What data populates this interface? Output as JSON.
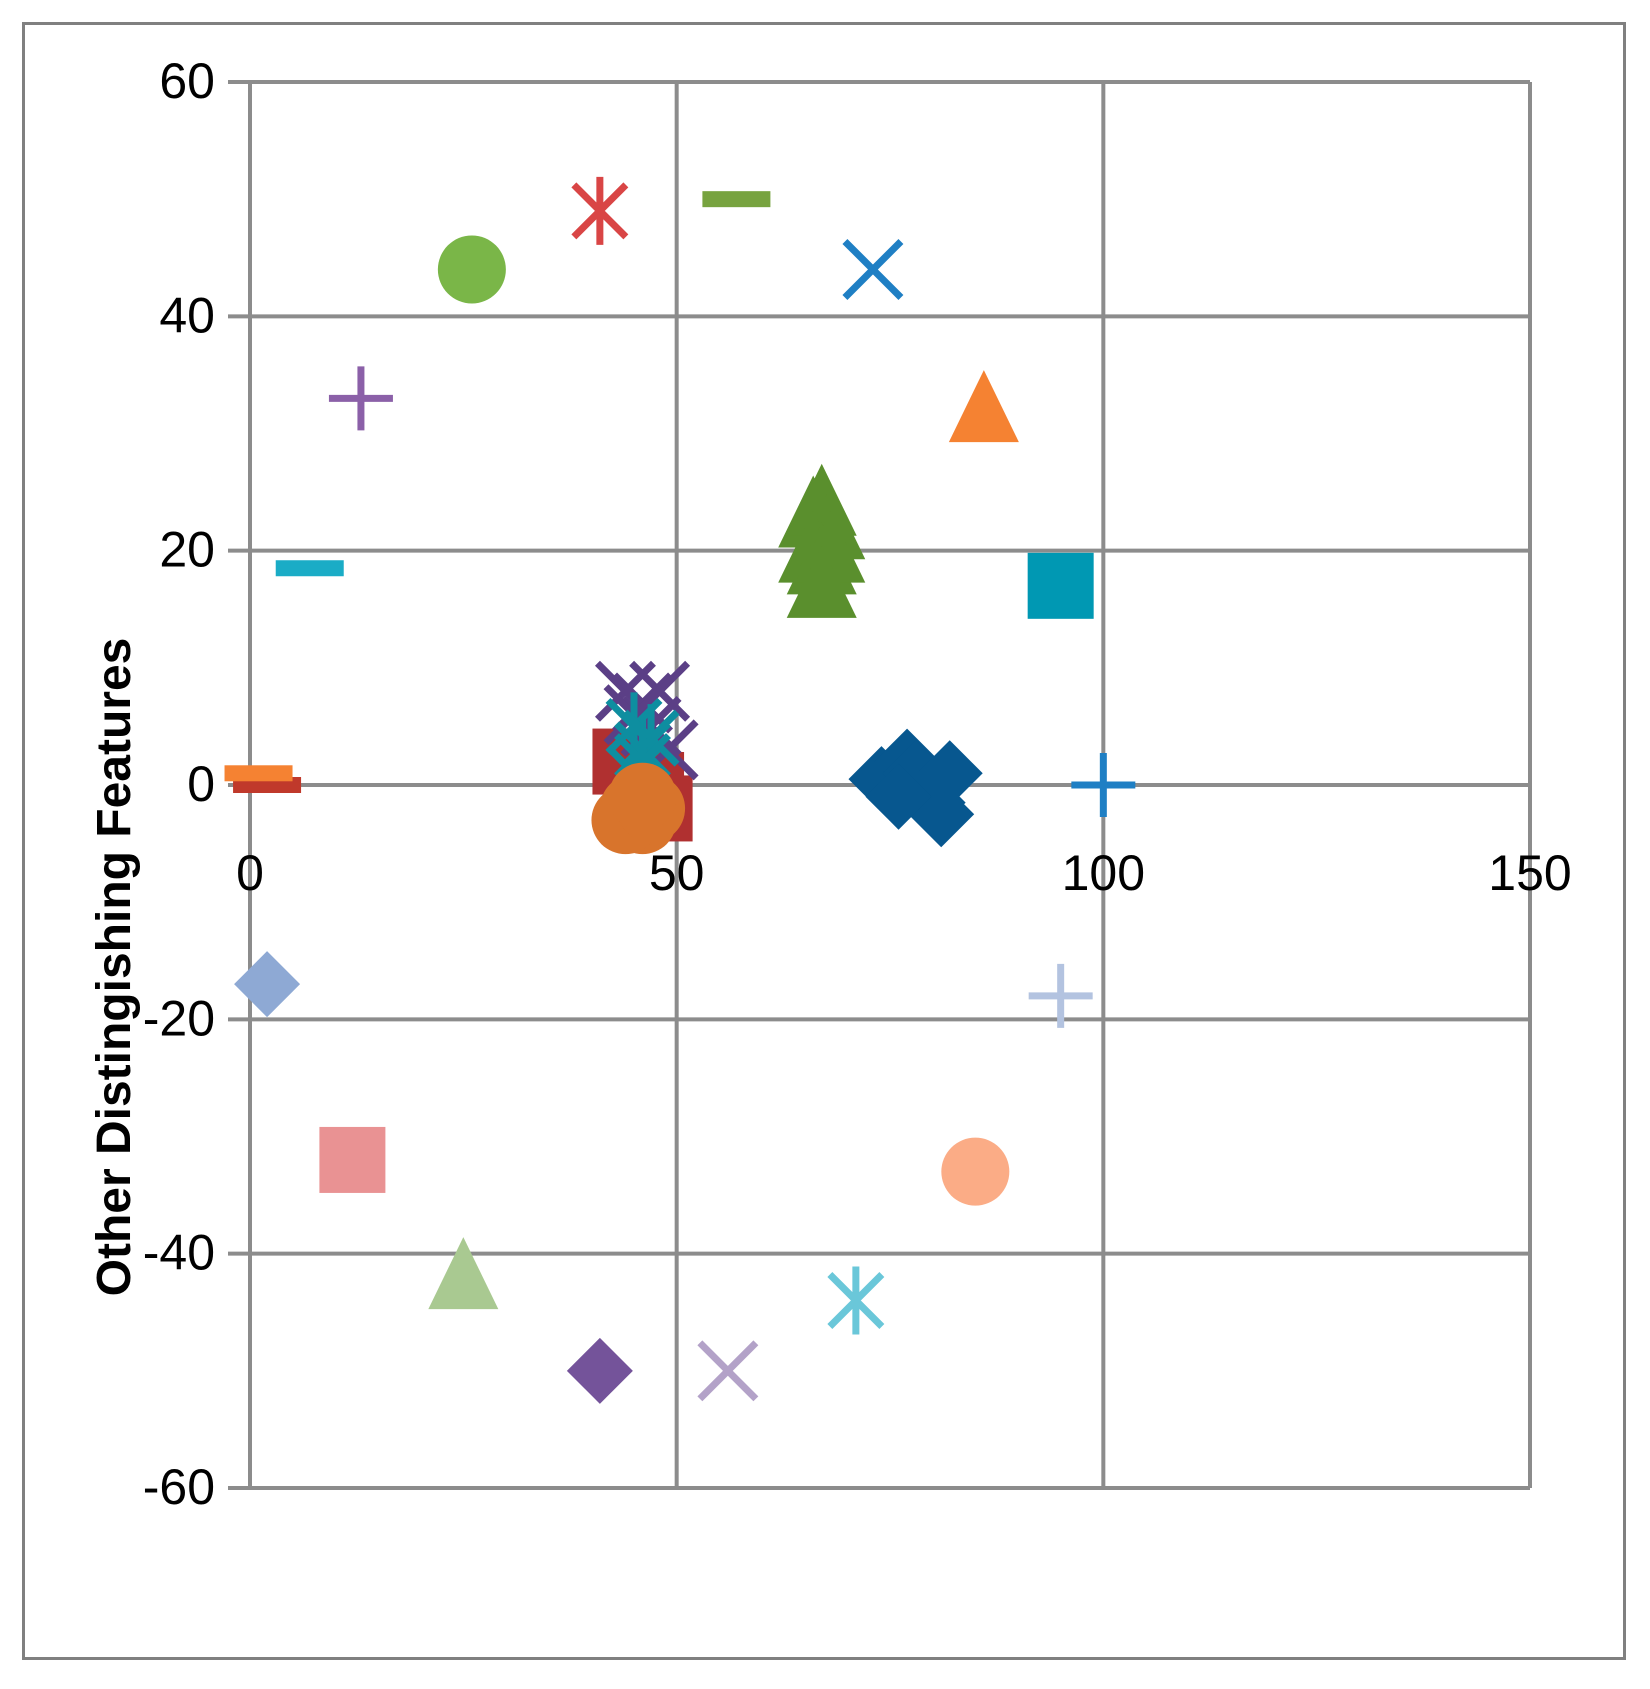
{
  "chart_data": {
    "type": "scatter",
    "title": "",
    "xlabel": "",
    "ylabel": "Other Distingishing Features",
    "xlim": [
      0,
      150
    ],
    "ylim": [
      -60,
      60
    ],
    "x_ticks": [
      0,
      50,
      100,
      150
    ],
    "y_ticks": [
      60,
      40,
      20,
      0,
      -20,
      -40,
      -60
    ],
    "x_tick_labels": [
      "0",
      "50",
      "100",
      "150"
    ],
    "y_tick_labels": [
      "60",
      "40",
      "20",
      "0",
      "-20",
      "-40",
      "-60"
    ],
    "grid": true,
    "legend": "none",
    "series": [
      {
        "marker": "x-cross",
        "color": "#1f7fc4",
        "points": [
          [
            73,
            44
          ]
        ]
      },
      {
        "marker": "triangle",
        "color": "#f58232",
        "points": [
          [
            86,
            32
          ]
        ]
      },
      {
        "marker": "square",
        "color": "#0098b3",
        "points": [
          [
            95,
            17
          ]
        ]
      },
      {
        "marker": "plus",
        "color": "#1f7fc4",
        "points": [
          [
            100,
            0
          ]
        ]
      },
      {
        "marker": "plus",
        "color": "#b3c3e0",
        "points": [
          [
            95,
            -18
          ]
        ]
      },
      {
        "marker": "circle",
        "color": "#fbac86",
        "points": [
          [
            85,
            -33
          ]
        ]
      },
      {
        "marker": "asterisk",
        "color": "#6ac7d9",
        "points": [
          [
            71,
            -44
          ]
        ]
      },
      {
        "marker": "x-cross",
        "color": "#b3a2c8",
        "points": [
          [
            56,
            -50
          ]
        ]
      },
      {
        "marker": "diamond",
        "color": "#74539a",
        "points": [
          [
            41,
            -50
          ]
        ]
      },
      {
        "marker": "triangle",
        "color": "#a9c991",
        "points": [
          [
            25,
            -42
          ]
        ]
      },
      {
        "marker": "square",
        "color": "#e99293",
        "points": [
          [
            12,
            -32
          ]
        ]
      },
      {
        "marker": "diamond",
        "color": "#8ea9d4",
        "points": [
          [
            2,
            -17
          ]
        ]
      },
      {
        "marker": "dash",
        "color": "#c0392b",
        "points": [
          [
            2,
            0
          ]
        ]
      },
      {
        "marker": "dash",
        "color": "#f58232",
        "points": [
          [
            1,
            1
          ]
        ]
      },
      {
        "marker": "dash",
        "color": "#1aacc6",
        "points": [
          [
            7,
            18.5
          ]
        ]
      },
      {
        "marker": "plus",
        "color": "#8b60a8",
        "points": [
          [
            13,
            33
          ]
        ]
      },
      {
        "marker": "circle",
        "color": "#7ab648",
        "points": [
          [
            26,
            44
          ]
        ]
      },
      {
        "marker": "asterisk",
        "color": "#d94545",
        "points": [
          [
            41,
            49
          ]
        ]
      },
      {
        "marker": "dash",
        "color": "#77a33f",
        "points": [
          [
            57,
            50
          ]
        ]
      },
      {
        "marker": "triangle",
        "color": "#5a8f2d",
        "points": [
          [
            66,
            23
          ],
          [
            67,
            24
          ],
          [
            68,
            22
          ],
          [
            66,
            20
          ],
          [
            67,
            19
          ],
          [
            68,
            20
          ],
          [
            67,
            17
          ]
        ]
      },
      {
        "marker": "diamond",
        "color": "#07578f",
        "points": [
          [
            74,
            0.5
          ],
          [
            77,
            2
          ],
          [
            78,
            1
          ],
          [
            79,
            0
          ],
          [
            80,
            -1.5
          ],
          [
            81,
            -2.5
          ],
          [
            82,
            1
          ],
          [
            76,
            -1
          ]
        ]
      },
      {
        "marker": "square",
        "color": "#b03030",
        "points": [
          [
            44,
            2
          ],
          [
            47,
            0
          ],
          [
            48,
            -2
          ],
          [
            46,
            -1
          ]
        ]
      },
      {
        "marker": "x-cross",
        "color": "#5b3f86",
        "points": [
          [
            44,
            8
          ],
          [
            46,
            7
          ],
          [
            48,
            8
          ],
          [
            47,
            5
          ],
          [
            49,
            3
          ],
          [
            45,
            6
          ]
        ]
      },
      {
        "marker": "asterisk",
        "color": "#0e8ea0",
        "points": [
          [
            45,
            5
          ],
          [
            46,
            3
          ],
          [
            47,
            4
          ],
          [
            45,
            1
          ],
          [
            46,
            2
          ]
        ]
      },
      {
        "marker": "circle",
        "color": "#d8742c",
        "points": [
          [
            45,
            -2
          ],
          [
            46,
            -3
          ],
          [
            44,
            -3
          ],
          [
            47,
            -2
          ],
          [
            46,
            -1
          ]
        ]
      }
    ]
  }
}
